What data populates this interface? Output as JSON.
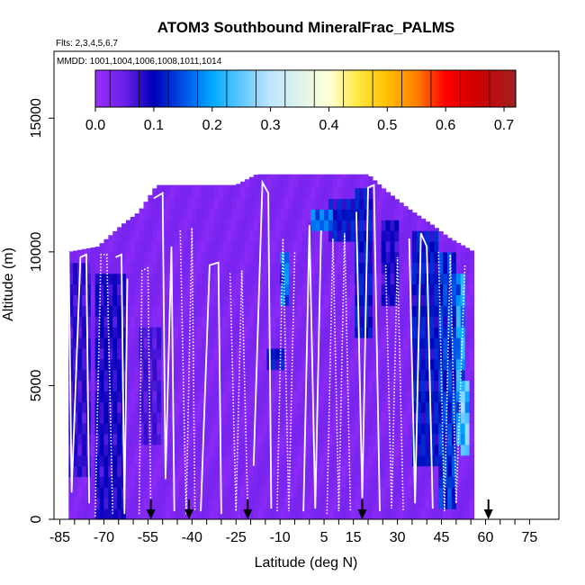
{
  "chart_data": {
    "type": "heatmap",
    "title": "ATOM3 Southbound MineralFrac_PALMS",
    "subtitle_flights": "Flts: 2,3,4,5,6,7",
    "subtitle_dates": "MMDD: 1001,1004,1006,1008,1011,1014",
    "xlabel": "Latitude (deg N)",
    "ylabel": "Altitude (m)",
    "xlim": [
      -87,
      85
    ],
    "ylim": [
      0,
      17500
    ],
    "x_ticks": [
      -85,
      -70,
      -55,
      -40,
      -25,
      -10,
      5,
      15,
      30,
      45,
      60,
      75
    ],
    "x_tick_labels": [
      "-85",
      "-70",
      "-55",
      "-40",
      "-25",
      "-10",
      "5",
      "15",
      "30",
      "45",
      "60",
      "75"
    ],
    "x_minor_step": 5,
    "y_ticks": [
      0,
      5000,
      10000,
      15000
    ],
    "y_tick_labels": [
      "0",
      "5000",
      "10000",
      "15000"
    ],
    "colorbar": {
      "min": 0.0,
      "max": 0.72,
      "ticks": [
        0.0,
        0.1,
        0.2,
        0.3,
        0.4,
        0.5,
        0.6,
        0.7
      ],
      "tick_labels": [
        "0.0",
        "0.1",
        "0.2",
        "0.3",
        "0.4",
        "0.5",
        "0.6",
        "0.7"
      ],
      "stops": [
        {
          "v": 0.0,
          "color": "#9b30ff"
        },
        {
          "v": 0.05,
          "color": "#6a1fe8"
        },
        {
          "v": 0.1,
          "color": "#0000b8"
        },
        {
          "v": 0.15,
          "color": "#0050e6"
        },
        {
          "v": 0.2,
          "color": "#00aaff"
        },
        {
          "v": 0.3,
          "color": "#bfe6ff"
        },
        {
          "v": 0.4,
          "color": "#ffffd8"
        },
        {
          "v": 0.45,
          "color": "#ffe840"
        },
        {
          "v": 0.5,
          "color": "#ffbf00"
        },
        {
          "v": 0.55,
          "color": "#ff8000"
        },
        {
          "v": 0.6,
          "color": "#ff0000"
        },
        {
          "v": 0.65,
          "color": "#d00000"
        },
        {
          "v": 0.72,
          "color": "#a02020"
        }
      ]
    },
    "coverage_ceiling": [
      {
        "lat": -82,
        "alt": 10000
      },
      {
        "lat": -72,
        "alt": 10200
      },
      {
        "lat": -64,
        "alt": 11000
      },
      {
        "lat": -58,
        "alt": 11500
      },
      {
        "lat": -52,
        "alt": 12500
      },
      {
        "lat": -25,
        "alt": 12500
      },
      {
        "lat": -18,
        "alt": 12900
      },
      {
        "lat": 20,
        "alt": 12900
      },
      {
        "lat": 26,
        "alt": 12300
      },
      {
        "lat": 34,
        "alt": 11600
      },
      {
        "lat": 42,
        "alt": 11000
      },
      {
        "lat": 48,
        "alt": 10500
      },
      {
        "lat": 53,
        "alt": 10200
      },
      {
        "lat": 56,
        "alt": 10000
      }
    ],
    "enhanced_regions": [
      {
        "lat_min": -82,
        "lat_max": -75,
        "alt_min": 1500,
        "alt_max": 9500,
        "value": 0.07
      },
      {
        "lat_min": -73,
        "lat_max": -62,
        "alt_min": 0,
        "alt_max": 9000,
        "value": 0.08
      },
      {
        "lat_min": -58,
        "lat_max": -50,
        "alt_min": 3000,
        "alt_max": 7000,
        "value": 0.06
      },
      {
        "lat_min": -14,
        "lat_max": -9,
        "alt_min": 5500,
        "alt_max": 6500,
        "value": 0.1
      },
      {
        "lat_min": -10,
        "lat_max": -7,
        "alt_min": 8000,
        "alt_max": 9800,
        "value": 0.15
      },
      {
        "lat_min": 0,
        "lat_max": 8,
        "alt_min": 10800,
        "alt_max": 11600,
        "value": 0.15
      },
      {
        "lat_min": 6,
        "lat_max": 16,
        "alt_min": 10500,
        "alt_max": 12000,
        "value": 0.1
      },
      {
        "lat_min": 16,
        "lat_max": 22,
        "alt_min": 7000,
        "alt_max": 12400,
        "value": 0.1
      },
      {
        "lat_min": 24,
        "lat_max": 31,
        "alt_min": 8000,
        "alt_max": 11000,
        "value": 0.08
      },
      {
        "lat_min": 35,
        "lat_max": 44,
        "alt_min": 2000,
        "alt_max": 10800,
        "value": 0.1
      },
      {
        "lat_min": 44,
        "lat_max": 50,
        "alt_min": 500,
        "alt_max": 10000,
        "value": 0.12
      },
      {
        "lat_min": 50,
        "lat_max": 53,
        "alt_min": 3000,
        "alt_max": 9000,
        "value": 0.18
      },
      {
        "lat_min": 52,
        "lat_max": 55,
        "alt_min": 2500,
        "alt_max": 5000,
        "value": 0.22
      }
    ],
    "flight_profiles": [
      {
        "style": "solid",
        "points": [
          [
            -82,
            10000
          ],
          [
            -81,
            1000
          ],
          [
            -78,
            9800
          ],
          [
            -76,
            9900
          ],
          [
            -75,
            600
          ]
        ]
      },
      {
        "style": "dotted",
        "points": [
          [
            -73,
            100
          ],
          [
            -71,
            9900
          ],
          [
            -69,
            9900
          ],
          [
            -67,
            200
          ]
        ]
      },
      {
        "style": "solid",
        "points": [
          [
            -66,
            9800
          ],
          [
            -64,
            9900
          ],
          [
            -63,
            200
          ],
          [
            -62,
            9000
          ]
        ]
      },
      {
        "style": "dotted",
        "points": [
          [
            -58,
            200
          ],
          [
            -57,
            9300
          ],
          [
            -55,
            9400
          ],
          [
            -54,
            200
          ]
        ]
      },
      {
        "style": "solid",
        "points": [
          [
            -53,
            12000
          ],
          [
            -50,
            12200
          ],
          [
            -49,
            1500
          ],
          [
            -47,
            10200
          ],
          [
            -46,
            300
          ]
        ]
      },
      {
        "style": "dotted",
        "points": [
          [
            -44,
            10800
          ],
          [
            -42,
            200
          ],
          [
            -40,
            10900
          ],
          [
            -39,
            300
          ]
        ]
      },
      {
        "style": "solid",
        "points": [
          [
            -37,
            300
          ],
          [
            -34,
            9500
          ],
          [
            -31,
            9600
          ],
          [
            -30,
            200
          ]
        ]
      },
      {
        "style": "dotted",
        "points": [
          [
            -27,
            9200
          ],
          [
            -25,
            300
          ],
          [
            -23,
            9300
          ],
          [
            -21,
            300
          ]
        ]
      },
      {
        "style": "solid",
        "points": [
          [
            -19,
            2000
          ],
          [
            -16,
            12600
          ],
          [
            -14,
            12200
          ],
          [
            -13,
            400
          ]
        ]
      },
      {
        "style": "dotted",
        "points": [
          [
            -11,
            300
          ],
          [
            -9,
            10500
          ],
          [
            -7,
            300
          ],
          [
            -5,
            10000
          ]
        ]
      },
      {
        "style": "solid",
        "points": [
          [
            -2,
            300
          ],
          [
            0,
            11000
          ],
          [
            2,
            400
          ],
          [
            4,
            10800
          ]
        ]
      },
      {
        "style": "dotted",
        "points": [
          [
            6,
            200
          ],
          [
            8,
            10500
          ],
          [
            10,
            300
          ],
          [
            12,
            10700
          ],
          [
            14,
            300
          ]
        ]
      },
      {
        "style": "solid",
        "points": [
          [
            16,
            11500
          ],
          [
            18,
            800
          ],
          [
            20,
            12400
          ],
          [
            22,
            12500
          ],
          [
            24,
            300
          ]
        ]
      },
      {
        "style": "dotted",
        "points": [
          [
            26,
            9500
          ],
          [
            28,
            400
          ],
          [
            30,
            9800
          ],
          [
            32,
            300
          ]
        ]
      },
      {
        "style": "solid",
        "points": [
          [
            34,
            10500
          ],
          [
            36,
            600
          ],
          [
            38,
            10700
          ],
          [
            40,
            10200
          ],
          [
            42,
            400
          ]
        ]
      },
      {
        "style": "dotted",
        "points": [
          [
            44,
            10000
          ],
          [
            46,
            300
          ],
          [
            48,
            9900
          ],
          [
            50,
            600
          ],
          [
            53,
            9500
          ]
        ]
      }
    ],
    "arrow_latitudes": [
      -54,
      -41,
      -21,
      18,
      61
    ]
  }
}
